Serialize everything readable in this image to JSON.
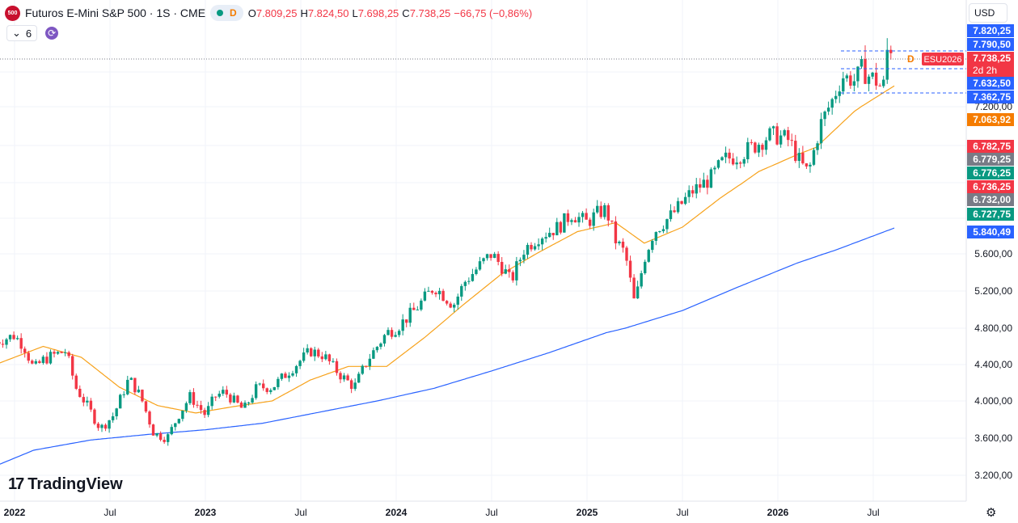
{
  "header": {
    "badge": "500",
    "title": "Futuros E-Mini S&P 500 · 1S · CME",
    "d_label": "D",
    "ohlc": [
      {
        "label": "O",
        "value": "7.809,25"
      },
      {
        "label": "H",
        "value": "7.824,50"
      },
      {
        "label": "L",
        "value": "7.698,25"
      },
      {
        "label": "C",
        "value": "7.738,25"
      }
    ],
    "change": "−66,75 (−0,86%)",
    "indicator_count": "6",
    "currency": "USD"
  },
  "logo": {
    "text": "TradingView"
  },
  "colors": {
    "up": "#089981",
    "down": "#f23645",
    "ma50": "#f7a21b",
    "ma200": "#2962ff",
    "grid": "#f0f3fa"
  },
  "chart_data": {
    "type": "candlestick",
    "y_ticks": [
      3200,
      3600,
      4000,
      4400,
      4800,
      5200,
      5600,
      6000,
      6400,
      6800,
      7200,
      7600
    ],
    "y_tick_labels": [
      "3.200,00",
      "3.600,00",
      "4.000,00",
      "4.400,00",
      "4.800,00",
      "5.200,00",
      "5.600,00",
      "",
      "",
      "",
      "7.200,00",
      ""
    ],
    "x_labels": [
      {
        "t": 2022.0,
        "label": "2022",
        "bold": true
      },
      {
        "t": 2022.5,
        "label": "Jul"
      },
      {
        "t": 2023.0,
        "label": "2023",
        "bold": true
      },
      {
        "t": 2023.5,
        "label": "Jul"
      },
      {
        "t": 2024.0,
        "label": "2024",
        "bold": true
      },
      {
        "t": 2024.5,
        "label": "Jul"
      },
      {
        "t": 2025.0,
        "label": "2025",
        "bold": true
      },
      {
        "t": 2025.5,
        "label": "Jul"
      },
      {
        "t": 2026.0,
        "label": "2026",
        "bold": true
      },
      {
        "t": 2026.5,
        "label": "Jul"
      }
    ],
    "close_anchors": [
      [
        2021.9,
        4650
      ],
      [
        2022.0,
        4720
      ],
      [
        2022.05,
        4600
      ],
      [
        2022.1,
        4350
      ],
      [
        2022.15,
        4450
      ],
      [
        2022.2,
        4500
      ],
      [
        2022.27,
        4550
      ],
      [
        2022.32,
        4150
      ],
      [
        2022.38,
        3950
      ],
      [
        2022.45,
        3700
      ],
      [
        2022.52,
        3850
      ],
      [
        2022.6,
        4250
      ],
      [
        2022.66,
        4050
      ],
      [
        2022.73,
        3650
      ],
      [
        2022.8,
        3600
      ],
      [
        2022.86,
        3850
      ],
      [
        2022.92,
        4050
      ],
      [
        2023.0,
        3850
      ],
      [
        2023.05,
        4050
      ],
      [
        2023.1,
        4100
      ],
      [
        2023.2,
        3900
      ],
      [
        2023.27,
        4150
      ],
      [
        2023.35,
        4150
      ],
      [
        2023.45,
        4350
      ],
      [
        2023.55,
        4550
      ],
      [
        2023.62,
        4500
      ],
      [
        2023.7,
        4300
      ],
      [
        2023.78,
        4150
      ],
      [
        2023.85,
        4450
      ],
      [
        2023.95,
        4750
      ],
      [
        2024.0,
        4800
      ],
      [
        2024.1,
        5000
      ],
      [
        2024.2,
        5250
      ],
      [
        2024.3,
        5050
      ],
      [
        2024.36,
        5300
      ],
      [
        2024.45,
        5500
      ],
      [
        2024.5,
        5600
      ],
      [
        2024.56,
        5450
      ],
      [
        2024.6,
        5300
      ],
      [
        2024.67,
        5650
      ],
      [
        2024.75,
        5800
      ],
      [
        2024.85,
        5900
      ],
      [
        2024.92,
        6050
      ],
      [
        2025.0,
        5950
      ],
      [
        2025.05,
        6050
      ],
      [
        2025.1,
        6100
      ],
      [
        2025.15,
        5750
      ],
      [
        2025.2,
        5600
      ],
      [
        2025.25,
        5050
      ],
      [
        2025.3,
        5550
      ],
      [
        2025.35,
        5850
      ],
      [
        2025.45,
        6050
      ],
      [
        2025.55,
        6300
      ],
      [
        2025.65,
        6450
      ],
      [
        2025.72,
        6650
      ],
      [
        2025.8,
        6700
      ],
      [
        2025.88,
        6800
      ],
      [
        2025.95,
        6900
      ],
      [
        2026.0,
        6900
      ],
      [
        2026.06,
        6850
      ],
      [
        2026.12,
        6600
      ],
      [
        2026.16,
        6500
      ],
      [
        2026.22,
        7000
      ],
      [
        2026.28,
        7250
      ],
      [
        2026.34,
        7550
      ],
      [
        2026.4,
        7500
      ],
      [
        2026.45,
        7580
      ],
      [
        2026.5,
        7530
      ],
      [
        2026.55,
        7400
      ],
      [
        2026.58,
        7800
      ],
      [
        2026.6,
        7738
      ]
    ],
    "ma50_anchors": [
      [
        2021.9,
        4400
      ],
      [
        2022.15,
        4600
      ],
      [
        2022.35,
        4480
      ],
      [
        2022.55,
        4150
      ],
      [
        2022.75,
        3950
      ],
      [
        2022.95,
        3870
      ],
      [
        2023.15,
        3940
      ],
      [
        2023.35,
        4000
      ],
      [
        2023.55,
        4230
      ],
      [
        2023.75,
        4380
      ],
      [
        2023.95,
        4380
      ],
      [
        2024.15,
        4700
      ],
      [
        2024.35,
        5050
      ],
      [
        2024.55,
        5380
      ],
      [
        2024.75,
        5620
      ],
      [
        2024.95,
        5850
      ],
      [
        2025.15,
        5950
      ],
      [
        2025.3,
        5720
      ],
      [
        2025.5,
        5900
      ],
      [
        2025.7,
        6230
      ],
      [
        2025.9,
        6520
      ],
      [
        2026.1,
        6700
      ],
      [
        2026.2,
        6780
      ],
      [
        2026.4,
        7150
      ],
      [
        2026.61,
        7440
      ]
    ],
    "ma200_anchors": [
      [
        2021.9,
        3300
      ],
      [
        2022.1,
        3470
      ],
      [
        2022.4,
        3580
      ],
      [
        2022.7,
        3640
      ],
      [
        2023.0,
        3690
      ],
      [
        2023.3,
        3760
      ],
      [
        2023.6,
        3880
      ],
      [
        2023.9,
        4000
      ],
      [
        2024.2,
        4140
      ],
      [
        2024.5,
        4330
      ],
      [
        2024.8,
        4530
      ],
      [
        2025.1,
        4750
      ],
      [
        2025.2,
        4800
      ],
      [
        2025.5,
        4990
      ],
      [
        2025.8,
        5250
      ],
      [
        2026.1,
        5500
      ],
      [
        2026.3,
        5640
      ],
      [
        2026.61,
        5890
      ]
    ],
    "price_tags": [
      {
        "label": "7.820,25",
        "bg": "#2962ff"
      },
      {
        "label": "7.790,50",
        "bg": "#2962ff"
      },
      {
        "label": "7.738,25",
        "bg": "#f23645",
        "sub": "2d 2h",
        "main": true
      },
      {
        "label": "7.632,50",
        "bg": "#2962ff"
      },
      {
        "label": "7.362,75",
        "bg": "#2962ff"
      },
      {
        "label": "7.063,92",
        "bg": "#f57c00"
      },
      {
        "label": "6.782,75",
        "bg": "#f23645"
      },
      {
        "label": "6.779,25",
        "bg": "#787b86"
      },
      {
        "label": "6.776,25",
        "bg": "#089981"
      },
      {
        "label": "6.736,25",
        "bg": "#f23645"
      },
      {
        "label": "6.732,00",
        "bg": "#787b86"
      },
      {
        "label": "6.727,75",
        "bg": "#089981"
      },
      {
        "label": "5.840,49",
        "bg": "#2962ff"
      }
    ],
    "symbol_tag": "ESU2026",
    "d_marker": "D"
  }
}
